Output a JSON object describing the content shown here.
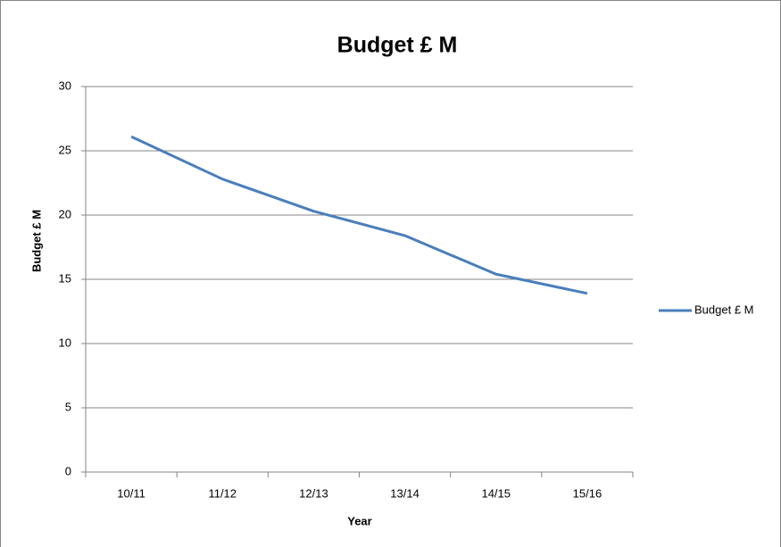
{
  "chart_data": {
    "type": "line",
    "title": "Budget £ M",
    "x_label": "Year",
    "y_label": "Budget £ M",
    "categories": [
      "10/11",
      "11/12",
      "12/13",
      "13/14",
      "14/15",
      "15/16"
    ],
    "series": [
      {
        "name": "Budget £ M",
        "color": "#4a7ebb",
        "values": [
          26.1,
          22.8,
          20.3,
          18.4,
          15.4,
          13.9
        ]
      }
    ],
    "ylim": [
      0,
      30
    ],
    "yticks": [
      0,
      5,
      10,
      15,
      20,
      25,
      30
    ],
    "grid": true,
    "legend": "right"
  }
}
